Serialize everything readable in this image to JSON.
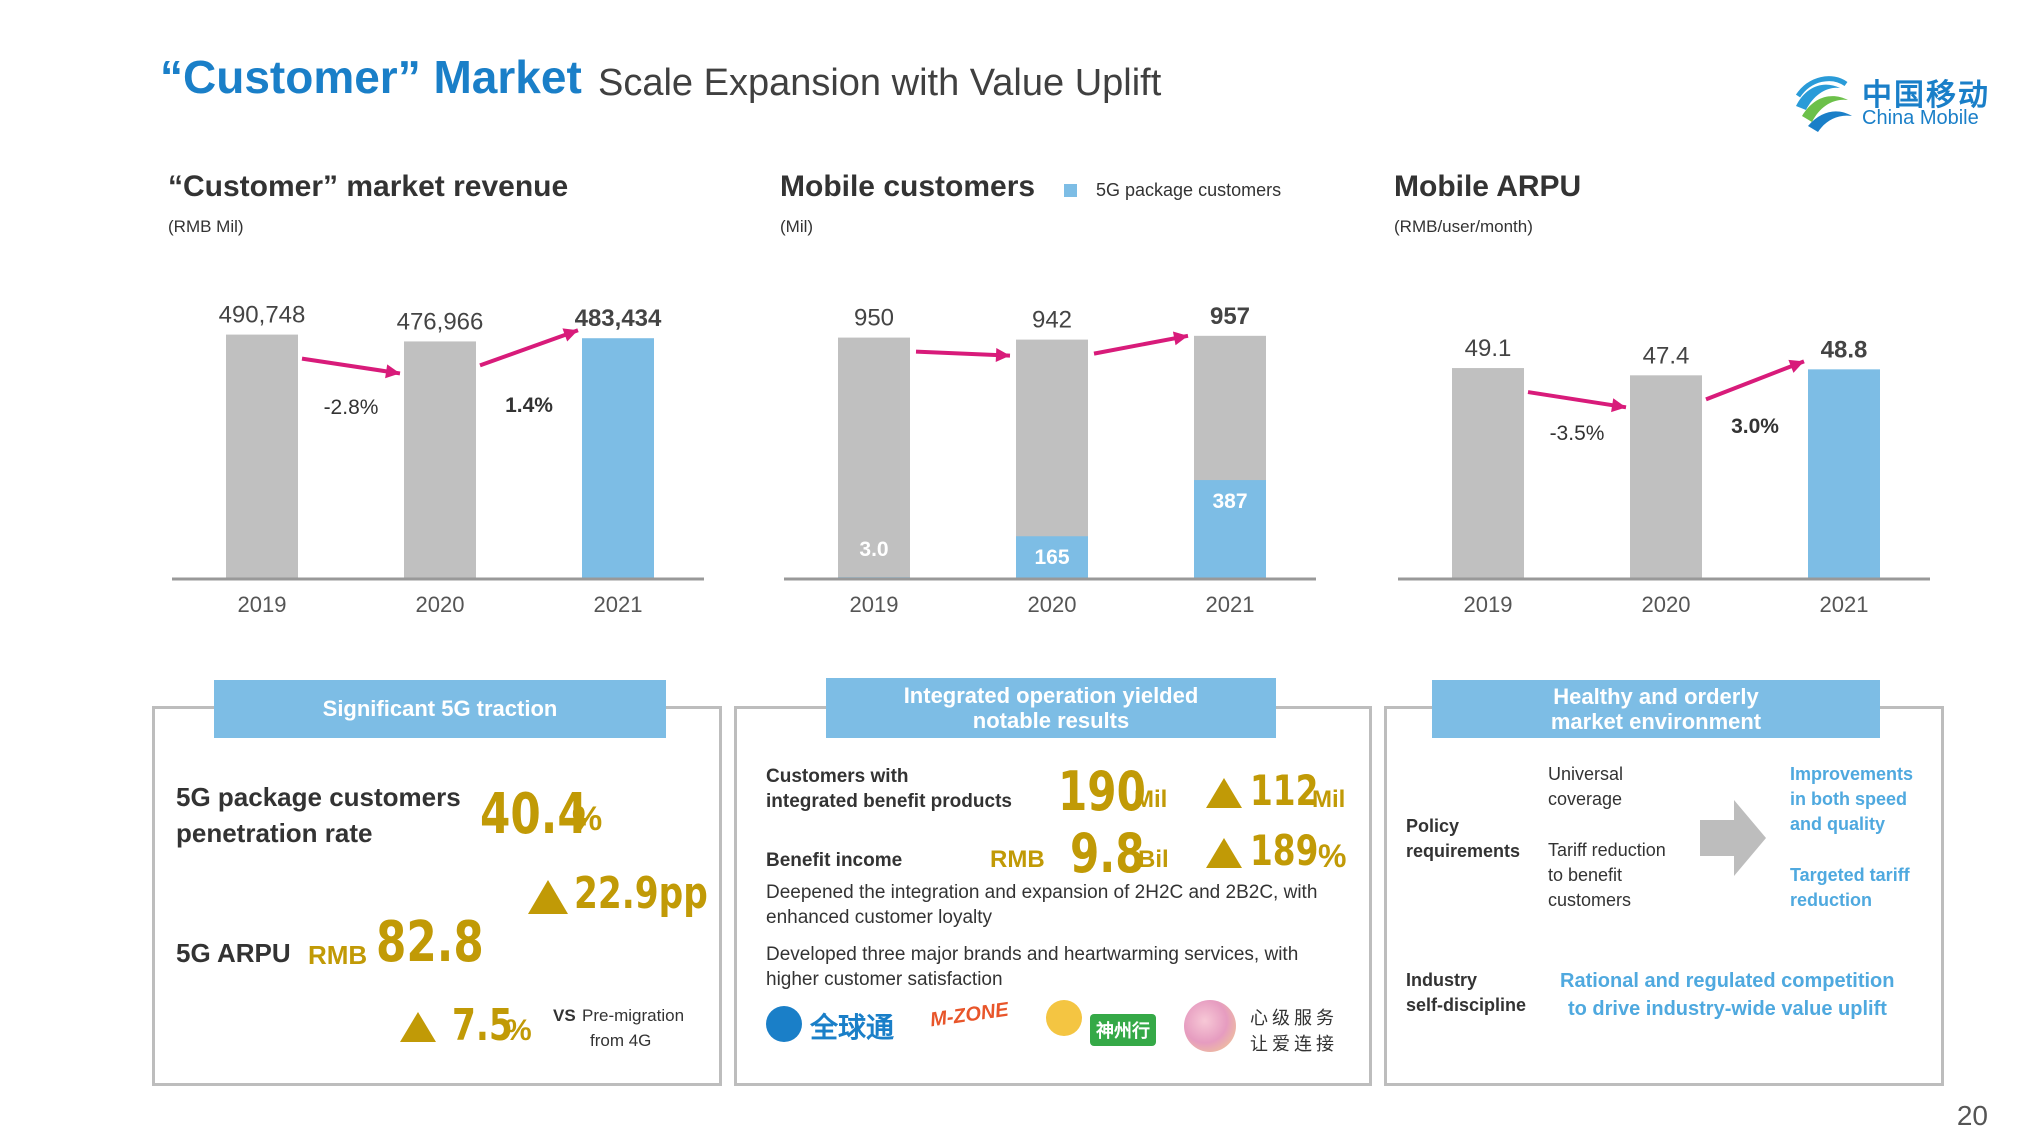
{
  "header": {
    "title": "“Customer” Market",
    "subtitle": "Scale Expansion with Value Uplift",
    "logo_cn": "中国移动",
    "logo_en": "China Mobile"
  },
  "chart_data": [
    {
      "type": "bar",
      "title": "“Customer” market revenue",
      "unit": "(RMB Mil)",
      "categories": [
        "2019",
        "2020",
        "2021"
      ],
      "values": [
        490748,
        476966,
        483434
      ],
      "value_labels": [
        "490,748",
        "476,966",
        "483,434"
      ],
      "changes": [
        "-2.8%",
        "1.4%"
      ],
      "ylim": [
        0,
        500000
      ],
      "colors": [
        "#c0c0c0",
        "#c0c0c0",
        "#7dbde5"
      ]
    },
    {
      "type": "bar",
      "title": "Mobile customers",
      "unit": "(Mil)",
      "legend": "5G package customers",
      "categories": [
        "2019",
        "2020",
        "2021"
      ],
      "series": [
        {
          "name": "Mobile customers",
          "values": [
            950,
            942,
            957
          ],
          "labels": [
            "950",
            "942",
            "957"
          ]
        },
        {
          "name": "5G package customers",
          "values": [
            3.0,
            165,
            387
          ],
          "labels": [
            "3.0",
            "165",
            "387"
          ]
        }
      ],
      "ylim": [
        0,
        980
      ],
      "colors": [
        "#c0c0c0",
        "#7dbde5"
      ]
    },
    {
      "type": "bar",
      "title": "Mobile ARPU",
      "unit": "(RMB/user/month)",
      "categories": [
        "2019",
        "2020",
        "2021"
      ],
      "values": [
        49.1,
        47.4,
        48.8
      ],
      "value_labels": [
        "49.1",
        "47.4",
        "48.8"
      ],
      "changes": [
        "-3.5%",
        "3.0%"
      ],
      "ylim": [
        0,
        58
      ],
      "colors": [
        "#c0c0c0",
        "#c0c0c0",
        "#7dbde5"
      ]
    }
  ],
  "panel1": {
    "header": "Significant 5G traction",
    "pen_label_1": "5G package customers",
    "pen_label_2": "penetration rate",
    "pen_value": "40.4",
    "pen_unit": "%",
    "pen_change": "22.9pp",
    "arpu_label": "5G ARPU",
    "arpu_prefix": "RMB",
    "arpu_value": "82.8",
    "arpu_change": "7.5",
    "arpu_change_unit": "%",
    "vs_1": "VS",
    "vs_2": "Pre-migration",
    "vs_3": "from 4G"
  },
  "panel2": {
    "header_1": "Integrated operation yielded",
    "header_2": "notable results",
    "row1_label_1": "Customers with",
    "row1_label_2": "integrated benefit products",
    "row1_value": "190",
    "row1_unit": "Mil",
    "row1_change": "112",
    "row1_change_unit": "Mil",
    "row2_label": "Benefit income",
    "row2_prefix": "RMB",
    "row2_value": "9.8",
    "row2_unit": "Bil",
    "row2_change": "189",
    "row2_change_unit": "%",
    "para1": "Deepened the integration and expansion of 2H2C and 2B2C, with enhanced customer loyalty",
    "para2": "Developed three major brands and heartwarming services, with higher customer satisfaction",
    "brand1": "全球通",
    "brand2": "M-ZONE",
    "brand3": "神州行",
    "brand4_1": "心级服务",
    "brand4_2": "让爱连接"
  },
  "panel3": {
    "header_1": "Healthy and orderly",
    "header_2": "market environment",
    "policy_1": "Policy",
    "policy_2": "requirements",
    "mid1_1": "Universal",
    "mid1_2": "coverage",
    "mid2_1": "Tariff reduction",
    "mid2_2": "to benefit",
    "mid2_3": "customers",
    "right1_1": "Improvements",
    "right1_2": "in both speed",
    "right1_3": "and quality",
    "right2_1": "Targeted tariff",
    "right2_2": "reduction",
    "industry_1": "Industry",
    "industry_2": "self-discipline",
    "industry_text_1": "Rational and regulated competition",
    "industry_text_2": "to drive industry-wide value uplift"
  },
  "page_number": "20"
}
